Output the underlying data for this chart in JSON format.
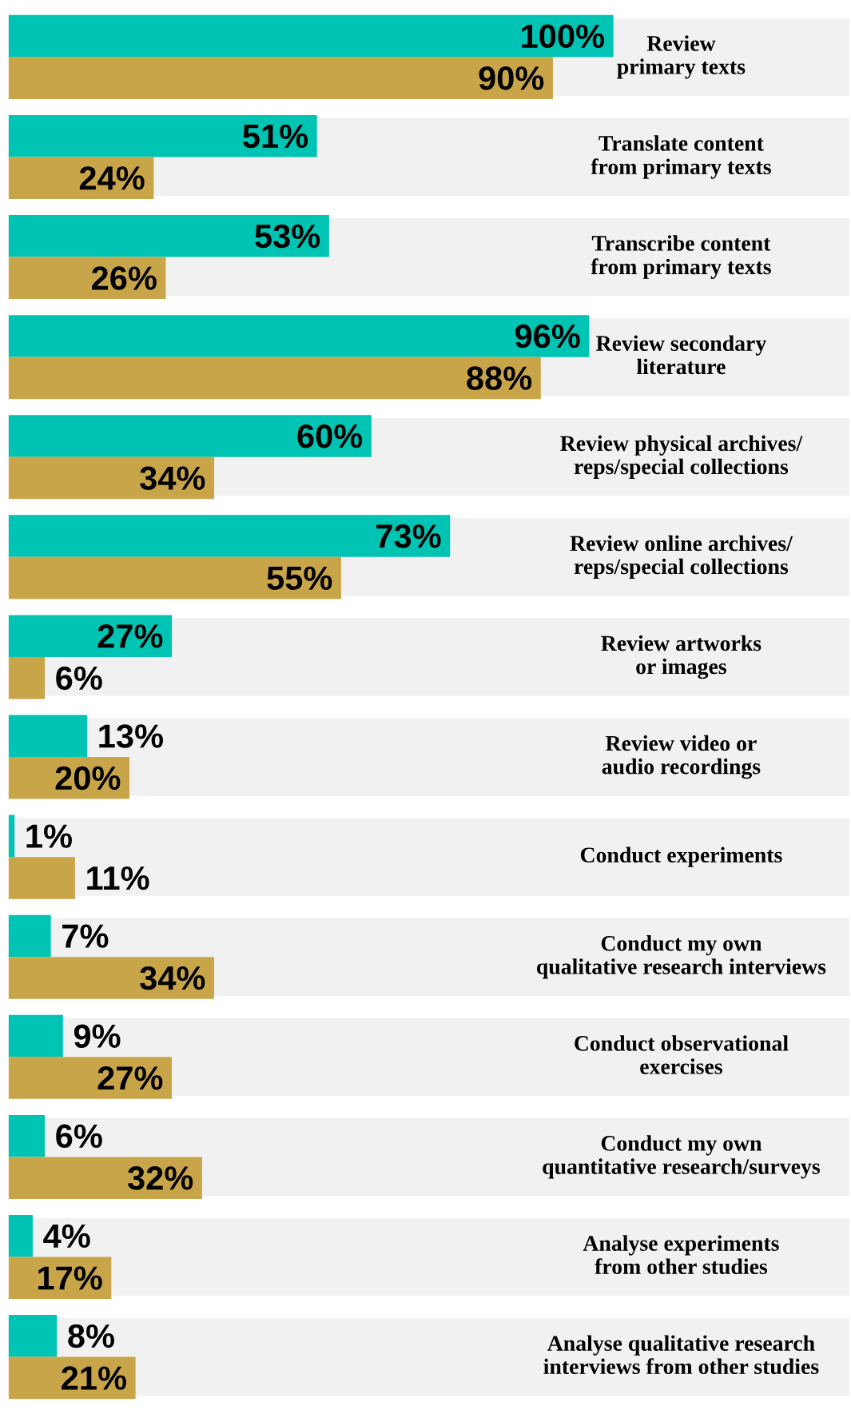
{
  "chart_data": {
    "type": "bar",
    "orientation": "horizontal",
    "categories": [
      "Review\nprimary texts",
      "Translate content\nfrom primary texts",
      "Transcribe content\nfrom primary texts",
      "Review secondary\nliterature",
      "Review physical archives/\nreps/special collections",
      "Review online archives/\nreps/special collections",
      "Review artworks\nor images",
      "Review video or\naudio recordings",
      "Conduct experiments",
      "Conduct my own\nqualitative research interviews",
      "Conduct observational\nexercises",
      "Conduct my own\nquantitative research/surveys",
      "Analyse experiments\nfrom other studies",
      "Analyse qualitative research\ninterviews from other studies"
    ],
    "series": [
      {
        "color": "#00c4b3",
        "values": [
          100,
          51,
          53,
          96,
          60,
          73,
          27,
          13,
          1,
          7,
          9,
          6,
          4,
          8
        ],
        "value_labels": [
          "100%",
          "51%",
          "53%",
          "96%",
          "60%",
          "73%",
          "27%",
          "13%",
          "1%",
          "7%",
          "9%",
          "6%",
          "4%",
          "8%"
        ]
      },
      {
        "color": "#c9a54a",
        "values": [
          90,
          24,
          26,
          88,
          34,
          55,
          6,
          20,
          11,
          34,
          27,
          32,
          17,
          21
        ],
        "value_labels": [
          "90%",
          "24%",
          "26%",
          "88%",
          "34%",
          "55%",
          "6%",
          "20%",
          "11%",
          "34%",
          "27%",
          "32%",
          "17%",
          "21%"
        ]
      }
    ],
    "xlim": [
      0,
      139
    ],
    "grid": "y",
    "legend": false
  }
}
